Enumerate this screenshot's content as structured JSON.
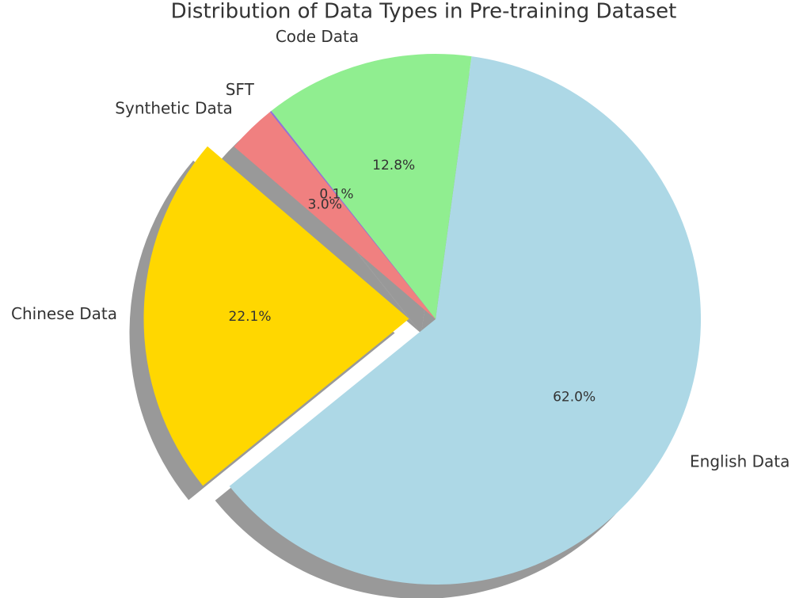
{
  "chart_data": {
    "type": "pie",
    "title": "Distribution of Data Types in Pre-training Dataset",
    "categories": [
      "English Data",
      "Code Data",
      "SFT",
      "Synthetic Data",
      "Chinese Data"
    ],
    "values": [
      62.0,
      12.8,
      0.1,
      3.0,
      22.1
    ],
    "value_labels": [
      "62.0%",
      "12.8%",
      "0.1%",
      "3.0%",
      "22.1%"
    ],
    "colors": [
      "#add8e6",
      "#90ee90",
      "#9370db",
      "#f08080",
      "#ffd700"
    ],
    "explode": [
      0,
      0,
      0,
      0,
      0.1
    ],
    "shadow": true
  }
}
